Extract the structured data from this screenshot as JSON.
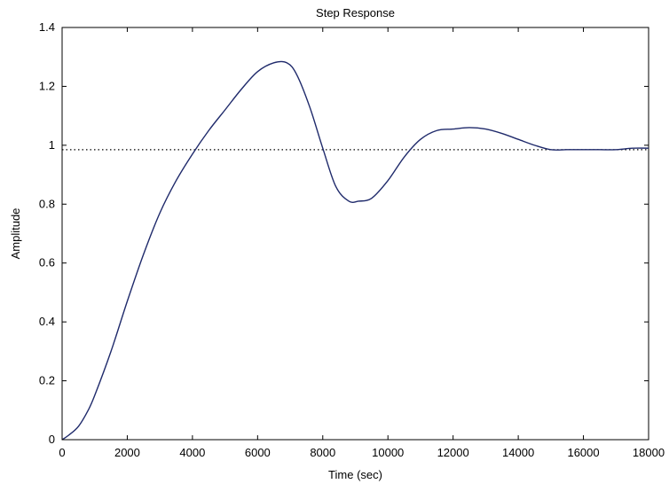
{
  "chart_data": {
    "type": "line",
    "title": "Step Response",
    "xlabel": "Time (sec)",
    "ylabel": "Amplitude",
    "xlim": [
      0,
      18000
    ],
    "ylim": [
      0,
      1.4
    ],
    "xticks": [
      "0",
      "2000",
      "4000",
      "6000",
      "8000",
      "10000",
      "12000",
      "14000",
      "16000",
      "18000"
    ],
    "yticks": [
      "0",
      "0.2",
      "0.4",
      "0.6",
      "0.8",
      "1",
      "1.2",
      "1.4"
    ],
    "grid": false,
    "reference_line": {
      "y": 0.985,
      "style": "dotted"
    },
    "series": [
      {
        "color": "#1f2a6b",
        "x": [
          0,
          200,
          500,
          800,
          1000,
          1500,
          2000,
          2500,
          3000,
          3500,
          4000,
          4500,
          5000,
          5500,
          6000,
          6500,
          6900,
          7200,
          7600,
          8000,
          8400,
          8800,
          9100,
          9500,
          10000,
          10500,
          11000,
          11500,
          12000,
          12500,
          13000,
          13500,
          14000,
          14500,
          15000,
          15500,
          16000,
          16500,
          17000,
          17500,
          18000
        ],
        "y": [
          0,
          0.015,
          0.045,
          0.1,
          0.15,
          0.3,
          0.47,
          0.63,
          0.77,
          0.88,
          0.97,
          1.05,
          1.12,
          1.19,
          1.25,
          1.28,
          1.28,
          1.24,
          1.13,
          0.99,
          0.86,
          0.81,
          0.81,
          0.82,
          0.88,
          0.96,
          1.02,
          1.05,
          1.055,
          1.06,
          1.055,
          1.04,
          1.02,
          1.0,
          0.985,
          0.985,
          0.985,
          0.985,
          0.985,
          0.99,
          0.99
        ]
      }
    ]
  }
}
